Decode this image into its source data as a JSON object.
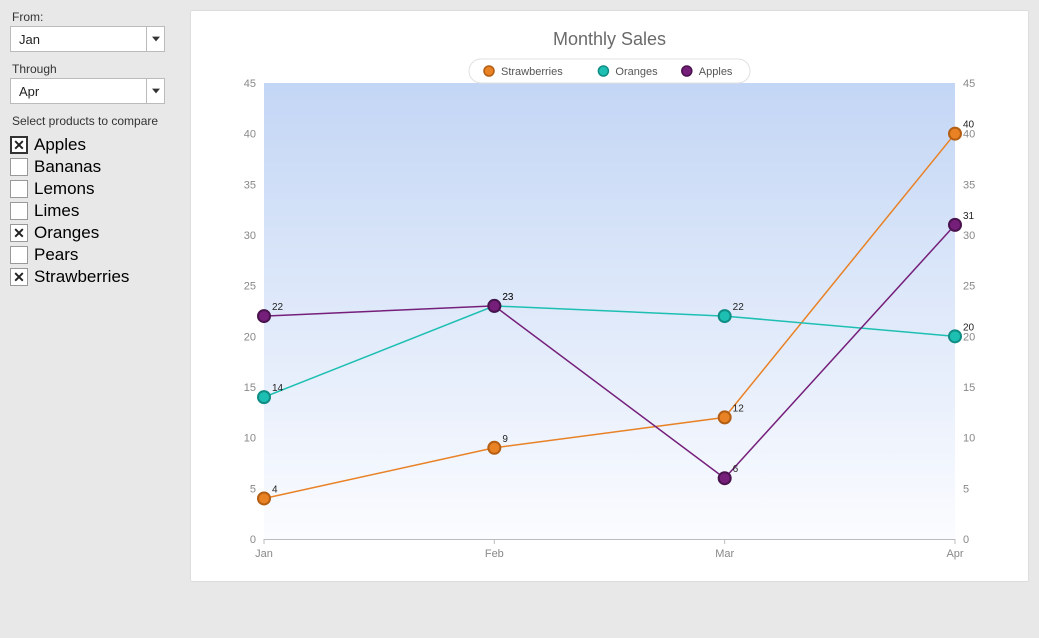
{
  "filters": {
    "from_label": "From:",
    "from_value": "Jan",
    "through_label": "Through",
    "through_value": "Apr",
    "products_title": "Select products to compare",
    "products": [
      {
        "key": "apples",
        "label": "Apples",
        "checked": true,
        "focused": true
      },
      {
        "key": "bananas",
        "label": "Bananas",
        "checked": false,
        "focused": false
      },
      {
        "key": "lemons",
        "label": "Lemons",
        "checked": false,
        "focused": false
      },
      {
        "key": "limes",
        "label": "Limes",
        "checked": false,
        "focused": false
      },
      {
        "key": "oranges",
        "label": "Oranges",
        "checked": true,
        "focused": false
      },
      {
        "key": "pears",
        "label": "Pears",
        "checked": false,
        "focused": false
      },
      {
        "key": "strawberries",
        "label": "Strawberries",
        "checked": true,
        "focused": false
      }
    ]
  },
  "chart": {
    "type": "line",
    "title": "Monthly Sales",
    "title_color": "#6a6a6a",
    "title_fontsize": 18,
    "background_gradient_top": "#c3d6f5",
    "background_gradient_bottom": "#fbfcff",
    "plot_border_color": "#bcbcbc",
    "axis_label_color": "#888888",
    "axis_fontsize": 11,
    "point_label_color": "#222222",
    "point_label_fontsize": 10,
    "marker_radius": 6,
    "marker_stroke_width": 2,
    "line_width": 1.5,
    "categories": [
      "Jan",
      "Feb",
      "Mar",
      "Apr"
    ],
    "ylim": [
      0,
      45
    ],
    "ytick_step": 5,
    "legend": {
      "background": "#ffffff",
      "border_radius": 12,
      "fontsize": 11,
      "text_color": "#555555"
    },
    "series": [
      {
        "name": "Strawberries",
        "color": "#e98125",
        "marker_stroke": "#b35e13",
        "values": [
          4,
          9,
          12,
          40
        ]
      },
      {
        "name": "Oranges",
        "color": "#1ebfb3",
        "marker_stroke": "#0f8d84",
        "values": [
          14,
          23,
          22,
          20
        ]
      },
      {
        "name": "Apples",
        "color": "#751f7a",
        "marker_stroke": "#4a134e",
        "values": [
          22,
          23,
          6,
          31
        ]
      }
    ]
  }
}
